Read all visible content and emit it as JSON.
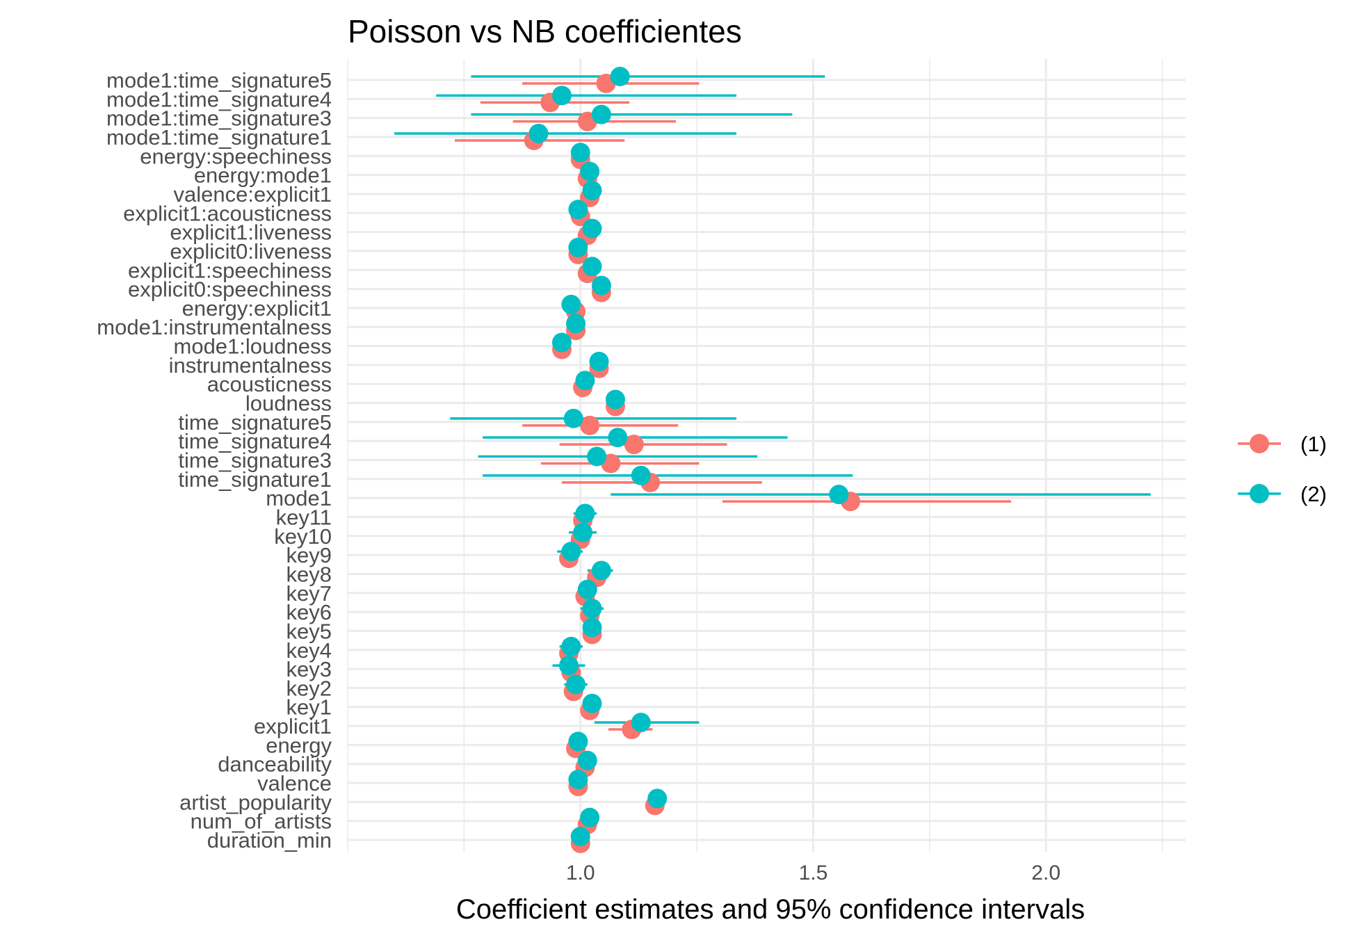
{
  "chart_data": {
    "type": "coefficient-plot",
    "title": "Poisson vs NB coefficientes",
    "xlabel": "Coefficient estimates and 95% confidence intervals",
    "ylabel": "",
    "xlim": [
      0.5,
      2.3
    ],
    "x_ticks": [
      1.0,
      1.5,
      2.0
    ],
    "x_tick_labels": [
      "1.0",
      "1.5",
      "2.0"
    ],
    "grid": true,
    "legend_position": "right",
    "categories": [
      "duration_min",
      "num_of_artists",
      "artist_popularity",
      "valence",
      "danceability",
      "energy",
      "explicit1",
      "key1",
      "key2",
      "key3",
      "key4",
      "key5",
      "key6",
      "key7",
      "key8",
      "key9",
      "key10",
      "key11",
      "mode1",
      "time_signature1",
      "time_signature3",
      "time_signature4",
      "time_signature5",
      "loudness",
      "acousticness",
      "instrumentalness",
      "mode1:loudness",
      "mode1:instrumentalness",
      "energy:explicit1",
      "explicit0:speechiness",
      "explicit1:speechiness",
      "explicit0:liveness",
      "explicit1:liveness",
      "explicit1:acousticness",
      "valence:explicit1",
      "energy:mode1",
      "energy:speechiness",
      "mode1:time_signature1",
      "mode1:time_signature3",
      "mode1:time_signature4",
      "mode1:time_signature5"
    ],
    "series": [
      {
        "name": "(1)",
        "color": "#F8766D",
        "estimate": [
          1.0,
          1.015,
          1.16,
          0.995,
          1.01,
          0.99,
          1.11,
          1.02,
          0.985,
          0.98,
          0.975,
          1.025,
          1.02,
          1.01,
          1.035,
          0.975,
          1.0,
          1.005,
          1.58,
          1.15,
          1.065,
          1.115,
          1.02,
          1.075,
          1.005,
          1.04,
          0.96,
          0.99,
          0.99,
          1.045,
          1.015,
          0.995,
          1.015,
          1.0,
          1.02,
          1.015,
          1.0,
          0.9,
          1.015,
          0.935,
          1.055
        ],
        "ci_low": [
          0.99,
          1.005,
          1.15,
          0.985,
          1.0,
          0.98,
          1.06,
          1.01,
          0.97,
          0.96,
          0.96,
          1.01,
          1.005,
          0.995,
          1.02,
          0.96,
          0.985,
          0.99,
          1.305,
          0.96,
          0.915,
          0.955,
          0.875,
          1.065,
          0.995,
          1.03,
          0.95,
          0.98,
          0.98,
          1.035,
          1.005,
          0.985,
          1.005,
          0.99,
          1.01,
          1.005,
          0.99,
          0.73,
          0.855,
          0.785,
          0.875
        ],
        "ci_high": [
          1.01,
          1.025,
          1.17,
          1.005,
          1.02,
          1.0,
          1.155,
          1.03,
          1.0,
          1.0,
          0.99,
          1.04,
          1.035,
          1.025,
          1.05,
          0.99,
          1.015,
          1.02,
          1.925,
          1.39,
          1.255,
          1.315,
          1.21,
          1.085,
          1.015,
          1.05,
          0.97,
          1.0,
          1.0,
          1.055,
          1.025,
          1.005,
          1.025,
          1.01,
          1.03,
          1.025,
          1.01,
          1.095,
          1.205,
          1.105,
          1.255
        ]
      },
      {
        "name": "(2)",
        "color": "#00BFC4",
        "estimate": [
          1.0,
          1.02,
          1.165,
          0.995,
          1.015,
          0.995,
          1.13,
          1.025,
          0.99,
          0.975,
          0.98,
          1.025,
          1.025,
          1.015,
          1.045,
          0.98,
          1.005,
          1.01,
          1.555,
          1.13,
          1.035,
          1.08,
          0.985,
          1.075,
          1.01,
          1.04,
          0.96,
          0.99,
          0.98,
          1.045,
          1.025,
          0.995,
          1.025,
          0.995,
          1.025,
          1.02,
          1.0,
          0.91,
          1.045,
          0.96,
          1.085
        ],
        "ci_low": [
          0.99,
          1.005,
          1.15,
          0.985,
          1.0,
          0.985,
          1.03,
          1.005,
          0.965,
          0.94,
          0.955,
          1.005,
          1.0,
          0.995,
          1.015,
          0.95,
          0.975,
          0.985,
          1.065,
          0.79,
          0.78,
          0.79,
          0.72,
          1.055,
          0.995,
          1.025,
          0.94,
          0.975,
          0.965,
          1.03,
          1.005,
          0.98,
          1.01,
          0.98,
          1.01,
          1.005,
          0.985,
          0.6,
          0.765,
          0.69,
          0.765
        ],
        "ci_high": [
          1.01,
          1.035,
          1.18,
          1.005,
          1.03,
          1.005,
          1.255,
          1.045,
          1.015,
          1.01,
          1.005,
          1.045,
          1.05,
          1.035,
          1.07,
          1.005,
          1.035,
          1.035,
          2.225,
          1.585,
          1.38,
          1.445,
          1.335,
          1.095,
          1.025,
          1.055,
          0.98,
          1.005,
          0.995,
          1.06,
          1.045,
          1.01,
          1.04,
          1.01,
          1.04,
          1.035,
          1.015,
          1.335,
          1.455,
          1.335,
          1.525
        ]
      }
    ]
  }
}
